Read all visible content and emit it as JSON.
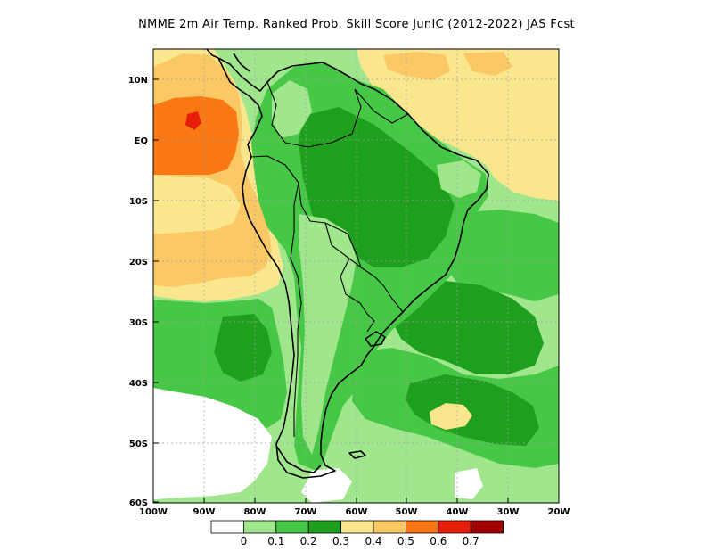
{
  "title": "NMME  2m Air Temp. Ranked Prob. Skill Score JunIC (2012-2022) JAS Fcst",
  "colors": {
    "c0": "#ffffff",
    "c1": "#a0e68c",
    "c2": "#46c846",
    "c3": "#1ea01e",
    "c4": "#fae68c",
    "c5": "#fac864",
    "c6": "#fa7814",
    "c7": "#e61e0a",
    "c8": "#a00000",
    "coast": "#000000",
    "grid": "#a0a0a0"
  },
  "lat_ticks": [
    "10N",
    "EQ",
    "10S",
    "20S",
    "30S",
    "40S",
    "50S",
    "60S"
  ],
  "lon_ticks": [
    "100W",
    "90W",
    "80W",
    "70W",
    "60W",
    "50W",
    "40W",
    "30W",
    "20W"
  ],
  "colorbar": {
    "labels": [
      "0",
      "0.1",
      "0.2",
      "0.3",
      "0.4",
      "0.5",
      "0.6",
      "0.7"
    ],
    "colors": [
      "#ffffff",
      "#a0e68c",
      "#46c846",
      "#1ea01e",
      "#fae68c",
      "#fac864",
      "#fa7814",
      "#e61e0a",
      "#a00000"
    ]
  }
}
